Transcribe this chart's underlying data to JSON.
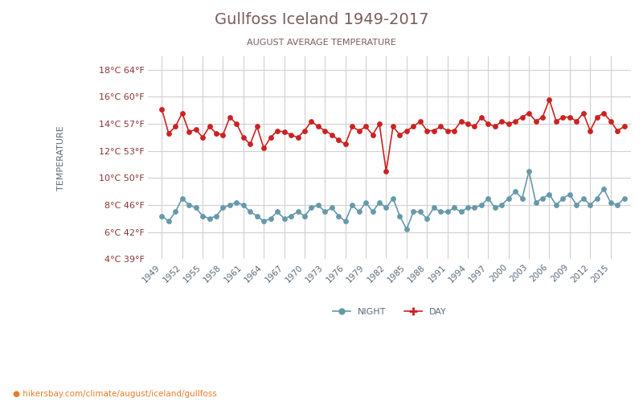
{
  "title": "Gullfoss Iceland 1949-2017",
  "subtitle": "AUGUST AVERAGE TEMPERATURE",
  "ylabel": "TEMPERATURE",
  "watermark": "hikersbay.com/climate/august/iceland/gullfoss",
  "title_color": "#7a5c5c",
  "subtitle_color": "#7a5c5c",
  "axis_label_color": "#5a6a7a",
  "tick_label_color": "#8b3333",
  "watermark_color": "#e87c2a",
  "background_color": "#ffffff",
  "grid_color": "#d0d0d0",
  "day_color": "#cc2222",
  "night_color": "#6699aa",
  "ylim": [
    4,
    19
  ],
  "yticks_c": [
    4,
    6,
    8,
    10,
    12,
    14,
    16,
    18
  ],
  "yticks_f": [
    39,
    42,
    46,
    50,
    53,
    57,
    60,
    64
  ],
  "years": [
    1949,
    1950,
    1951,
    1952,
    1953,
    1954,
    1955,
    1956,
    1957,
    1958,
    1959,
    1960,
    1961,
    1962,
    1963,
    1964,
    1965,
    1966,
    1967,
    1968,
    1969,
    1970,
    1971,
    1972,
    1973,
    1974,
    1975,
    1976,
    1977,
    1978,
    1979,
    1980,
    1981,
    1982,
    1983,
    1984,
    1985,
    1986,
    1987,
    1988,
    1989,
    1990,
    1991,
    1992,
    1993,
    1994,
    1995,
    1996,
    1997,
    1998,
    1999,
    2000,
    2001,
    2002,
    2003,
    2004,
    2005,
    2006,
    2007,
    2008,
    2009,
    2010,
    2011,
    2012,
    2013,
    2014,
    2015,
    2016,
    2017
  ],
  "day_temps": [
    15.1,
    13.3,
    13.8,
    14.8,
    13.4,
    13.6,
    13.0,
    13.8,
    13.3,
    13.2,
    14.5,
    14.0,
    13.0,
    12.5,
    13.8,
    12.2,
    13.0,
    13.5,
    13.4,
    13.2,
    13.0,
    13.5,
    14.2,
    13.8,
    13.5,
    13.2,
    12.8,
    12.5,
    13.8,
    13.5,
    13.8,
    13.2,
    14.0,
    10.5,
    13.8,
    13.2,
    13.5,
    13.8,
    14.2,
    13.5,
    13.5,
    13.8,
    13.5,
    13.5,
    14.2,
    14.0,
    13.8,
    14.5,
    14.0,
    13.8,
    14.2,
    14.0,
    14.2,
    14.5,
    14.8,
    14.2,
    14.5,
    15.8,
    14.2,
    14.5,
    14.5,
    14.2,
    14.8,
    13.5,
    14.5,
    14.8,
    14.2,
    13.5,
    13.8
  ],
  "night_temps": [
    7.2,
    6.8,
    7.5,
    8.5,
    8.0,
    7.8,
    7.2,
    7.0,
    7.2,
    7.8,
    8.0,
    8.2,
    8.0,
    7.5,
    7.2,
    6.8,
    7.0,
    7.5,
    7.0,
    7.2,
    7.5,
    7.2,
    7.8,
    8.0,
    7.5,
    7.8,
    7.2,
    6.8,
    8.0,
    7.5,
    8.2,
    7.5,
    8.2,
    7.8,
    8.5,
    7.2,
    6.2,
    7.5,
    7.5,
    7.0,
    7.8,
    7.5,
    7.5,
    7.8,
    7.5,
    7.8,
    7.8,
    8.0,
    8.5,
    7.8,
    8.0,
    8.5,
    9.0,
    8.5,
    10.5,
    8.2,
    8.5,
    8.8,
    8.0,
    8.5,
    8.8,
    8.0,
    8.5,
    8.0,
    8.5,
    9.2,
    8.2,
    8.0,
    8.5
  ]
}
